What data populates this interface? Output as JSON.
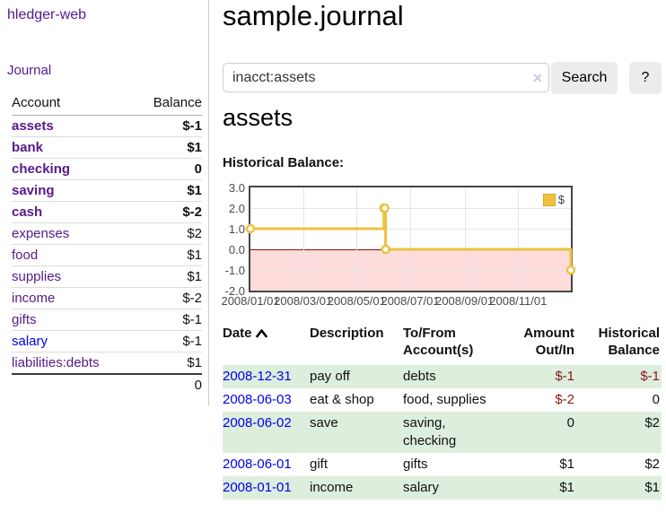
{
  "colors": {
    "link_purple": "#551a8b",
    "link_blue": "#0000ee",
    "negative_strong": "#8f1515",
    "negative_soft": "#c17575",
    "row_stripe_green": "#ddeedd",
    "chart_line_gold": "#edc240",
    "chart_negative_fill": "#ffdcdc",
    "chart_zero_line": "#8b1010",
    "button_gray": "#ececec"
  },
  "sidebar": {
    "brand": "hledger-web",
    "nav_journal": "Journal",
    "table": {
      "account_header": "Account",
      "balance_header": "Balance",
      "accounts": [
        {
          "name": "assets",
          "balance": "$-1"
        },
        {
          "name": "bank",
          "balance": "$1"
        },
        {
          "name": "checking",
          "balance": "0"
        },
        {
          "name": "saving",
          "balance": "$1"
        },
        {
          "name": "cash",
          "balance": "$-2"
        },
        {
          "name": "expenses",
          "balance": "$2"
        },
        {
          "name": "food",
          "balance": "$1"
        },
        {
          "name": "supplies",
          "balance": "$1"
        },
        {
          "name": "income",
          "balance": "$-2"
        },
        {
          "name": "gifts",
          "balance": "$-1"
        },
        {
          "name": "salary",
          "balance": "$-1"
        },
        {
          "name": "liabilities:debts",
          "balance": "$1"
        }
      ],
      "total": "0"
    }
  },
  "main": {
    "title": "sample.journal",
    "search": {
      "value": "inacct:assets",
      "clear": "✕",
      "button": "Search",
      "help": "?"
    },
    "account_heading": "assets"
  },
  "chart_data": {
    "type": "line",
    "step": true,
    "title": "Historical Balance:",
    "x": [
      "2008-01-01",
      "2008-06-01",
      "2008-06-02",
      "2008-06-03",
      "2008-12-31"
    ],
    "series": [
      {
        "name": "$",
        "color": "#edc240",
        "values": [
          1,
          2,
          2,
          0,
          -1
        ]
      }
    ],
    "xlim": [
      "2008-01-01",
      "2008-12-31"
    ],
    "ylim": [
      -2,
      3
    ],
    "yticks": [
      3.0,
      2.0,
      1.0,
      0.0,
      -1.0,
      -2.0
    ],
    "ytick_labels": [
      "3.0",
      "2.0",
      "1.0",
      "0.0",
      "-1.0",
      "-2.0"
    ],
    "xtick_labels": [
      "2008/01/01",
      "2008/03/01",
      "2008/05/01",
      "2008/07/01",
      "2008/09/01",
      "2008/11/01"
    ],
    "legend_position": "top-right",
    "grid": true,
    "negative_region_shaded": true
  },
  "transactions": {
    "headers": {
      "date": "Date",
      "description": "Description",
      "tofrom_l1": "To/From",
      "tofrom_l2": "Account(s)",
      "amount_l1": "Amount",
      "amount_l2": "Out/In",
      "balance_l1": "Historical",
      "balance_l2": "Balance"
    },
    "rows": [
      {
        "date": "2008-12-31",
        "description": "pay off",
        "accounts": "debts",
        "amount": "$-1",
        "balance": "$-1"
      },
      {
        "date": "2008-06-03",
        "description": "eat & shop",
        "accounts": "food, supplies",
        "amount": "$-2",
        "balance": "0"
      },
      {
        "date": "2008-06-02",
        "description": "save",
        "accounts": "saving, checking",
        "amount": "0",
        "balance": "$2"
      },
      {
        "date": "2008-06-01",
        "description": "gift",
        "accounts": "gifts",
        "amount": "$1",
        "balance": "$2"
      },
      {
        "date": "2008-01-01",
        "description": "income",
        "accounts": "salary",
        "amount": "$1",
        "balance": "$1"
      }
    ]
  }
}
